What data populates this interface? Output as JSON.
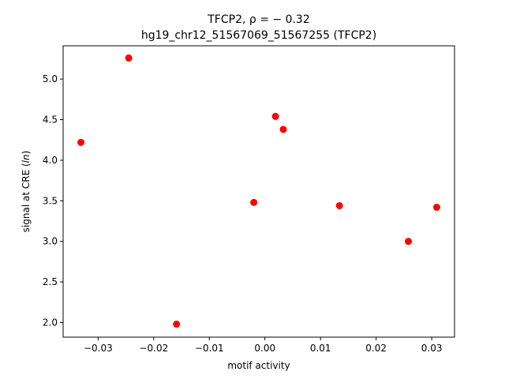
{
  "chart_data": {
    "type": "scatter",
    "title_line1": "TFCP2, ρ = − 0.32",
    "title_line2": "hg19_chr12_51567069_51567255 (TFCP2)",
    "xlabel": "motif activity",
    "ylabel": "signal at CRE (ln)",
    "xlim": [
      -0.0363,
      0.0341
    ],
    "ylim": [
      1.82,
      5.41
    ],
    "x_ticks": [
      {
        "value": -0.03,
        "label": "−0.03"
      },
      {
        "value": -0.02,
        "label": "−0.02"
      },
      {
        "value": -0.01,
        "label": "−0.01"
      },
      {
        "value": 0.0,
        "label": "0.00"
      },
      {
        "value": 0.01,
        "label": "0.01"
      },
      {
        "value": 0.02,
        "label": "0.02"
      },
      {
        "value": 0.03,
        "label": "0.03"
      }
    ],
    "y_ticks": [
      {
        "value": 2.0,
        "label": "2.0"
      },
      {
        "value": 2.5,
        "label": "2.5"
      },
      {
        "value": 3.0,
        "label": "3.0"
      },
      {
        "value": 3.5,
        "label": "3.5"
      },
      {
        "value": 4.0,
        "label": "4.0"
      },
      {
        "value": 4.5,
        "label": "4.5"
      },
      {
        "value": 5.0,
        "label": "5.0"
      }
    ],
    "grid": false,
    "marker_color": "#ff0000",
    "points": [
      {
        "x": -0.0331,
        "y": 4.22
      },
      {
        "x": -0.0245,
        "y": 5.26
      },
      {
        "x": -0.0159,
        "y": 1.98
      },
      {
        "x": -0.002,
        "y": 3.48
      },
      {
        "x": 0.0019,
        "y": 4.54
      },
      {
        "x": 0.0033,
        "y": 4.38
      },
      {
        "x": 0.0134,
        "y": 3.44
      },
      {
        "x": 0.0258,
        "y": 3.0
      },
      {
        "x": 0.0309,
        "y": 3.42
      }
    ]
  }
}
